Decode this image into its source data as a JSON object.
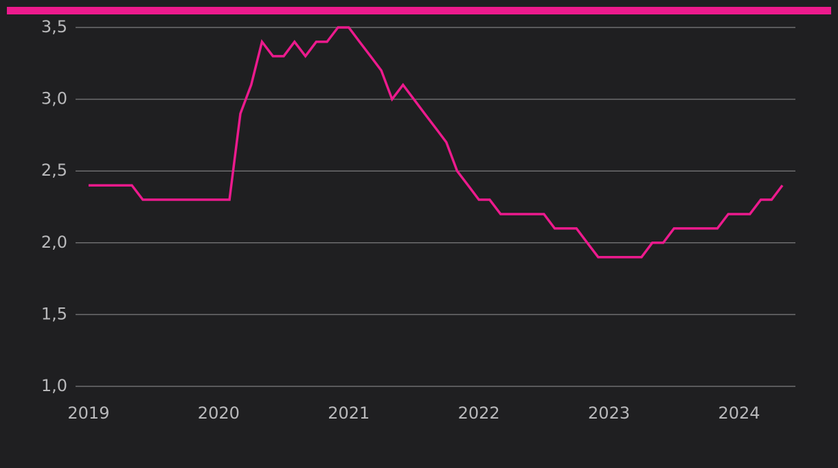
{
  "chart_data": {
    "type": "line",
    "x": [
      2019,
      2019.083,
      2019.167,
      2019.25,
      2019.333,
      2019.417,
      2019.5,
      2019.583,
      2019.667,
      2019.75,
      2019.833,
      2019.917,
      2020,
      2020.083,
      2020.167,
      2020.25,
      2020.333,
      2020.417,
      2020.5,
      2020.583,
      2020.667,
      2020.75,
      2020.833,
      2020.917,
      2021,
      2021.083,
      2021.167,
      2021.25,
      2021.333,
      2021.417,
      2021.5,
      2021.583,
      2021.667,
      2021.75,
      2021.833,
      2021.917,
      2022,
      2022.083,
      2022.167,
      2022.25,
      2022.333,
      2022.417,
      2022.5,
      2022.583,
      2022.667,
      2022.75,
      2022.833,
      2022.917,
      2023,
      2023.083,
      2023.167,
      2023.25,
      2023.333,
      2023.417,
      2023.5,
      2023.583,
      2023.667,
      2023.75,
      2023.833,
      2023.917,
      2024,
      2024.083,
      2024.167,
      2024.25,
      2024.333
    ],
    "values": [
      2.4,
      2.4,
      2.4,
      2.4,
      2.4,
      2.3,
      2.3,
      2.3,
      2.3,
      2.3,
      2.3,
      2.3,
      2.3,
      2.3,
      2.9,
      3.1,
      3.4,
      3.3,
      3.3,
      3.4,
      3.3,
      3.4,
      3.4,
      3.5,
      3.5,
      3.4,
      3.3,
      3.2,
      3.0,
      3.1,
      3.0,
      2.9,
      2.8,
      2.7,
      2.5,
      2.4,
      2.3,
      2.3,
      2.2,
      2.2,
      2.2,
      2.2,
      2.2,
      2.1,
      2.1,
      2.1,
      2.0,
      1.9,
      1.9,
      1.9,
      1.9,
      1.9,
      2.0,
      2.0,
      2.1,
      2.1,
      2.1,
      2.1,
      2.1,
      2.2,
      2.2,
      2.2,
      2.3,
      2.3,
      2.4
    ],
    "color": "#ec1a8d",
    "xlim": [
      2018.9,
      2024.433
    ],
    "xticks": [
      2019,
      2020,
      2021,
      2022,
      2023,
      2024
    ],
    "ylim": [
      1.0,
      3.5
    ],
    "yticks": [
      {
        "value": 1.0,
        "label": "1,0"
      },
      {
        "value": 1.5,
        "label": "1,5"
      },
      {
        "value": 2.0,
        "label": "2,0"
      },
      {
        "value": 2.5,
        "label": "2,5"
      },
      {
        "value": 3.0,
        "label": "3,0"
      },
      {
        "value": 3.5,
        "label": "3,5"
      }
    ],
    "grid": true
  }
}
